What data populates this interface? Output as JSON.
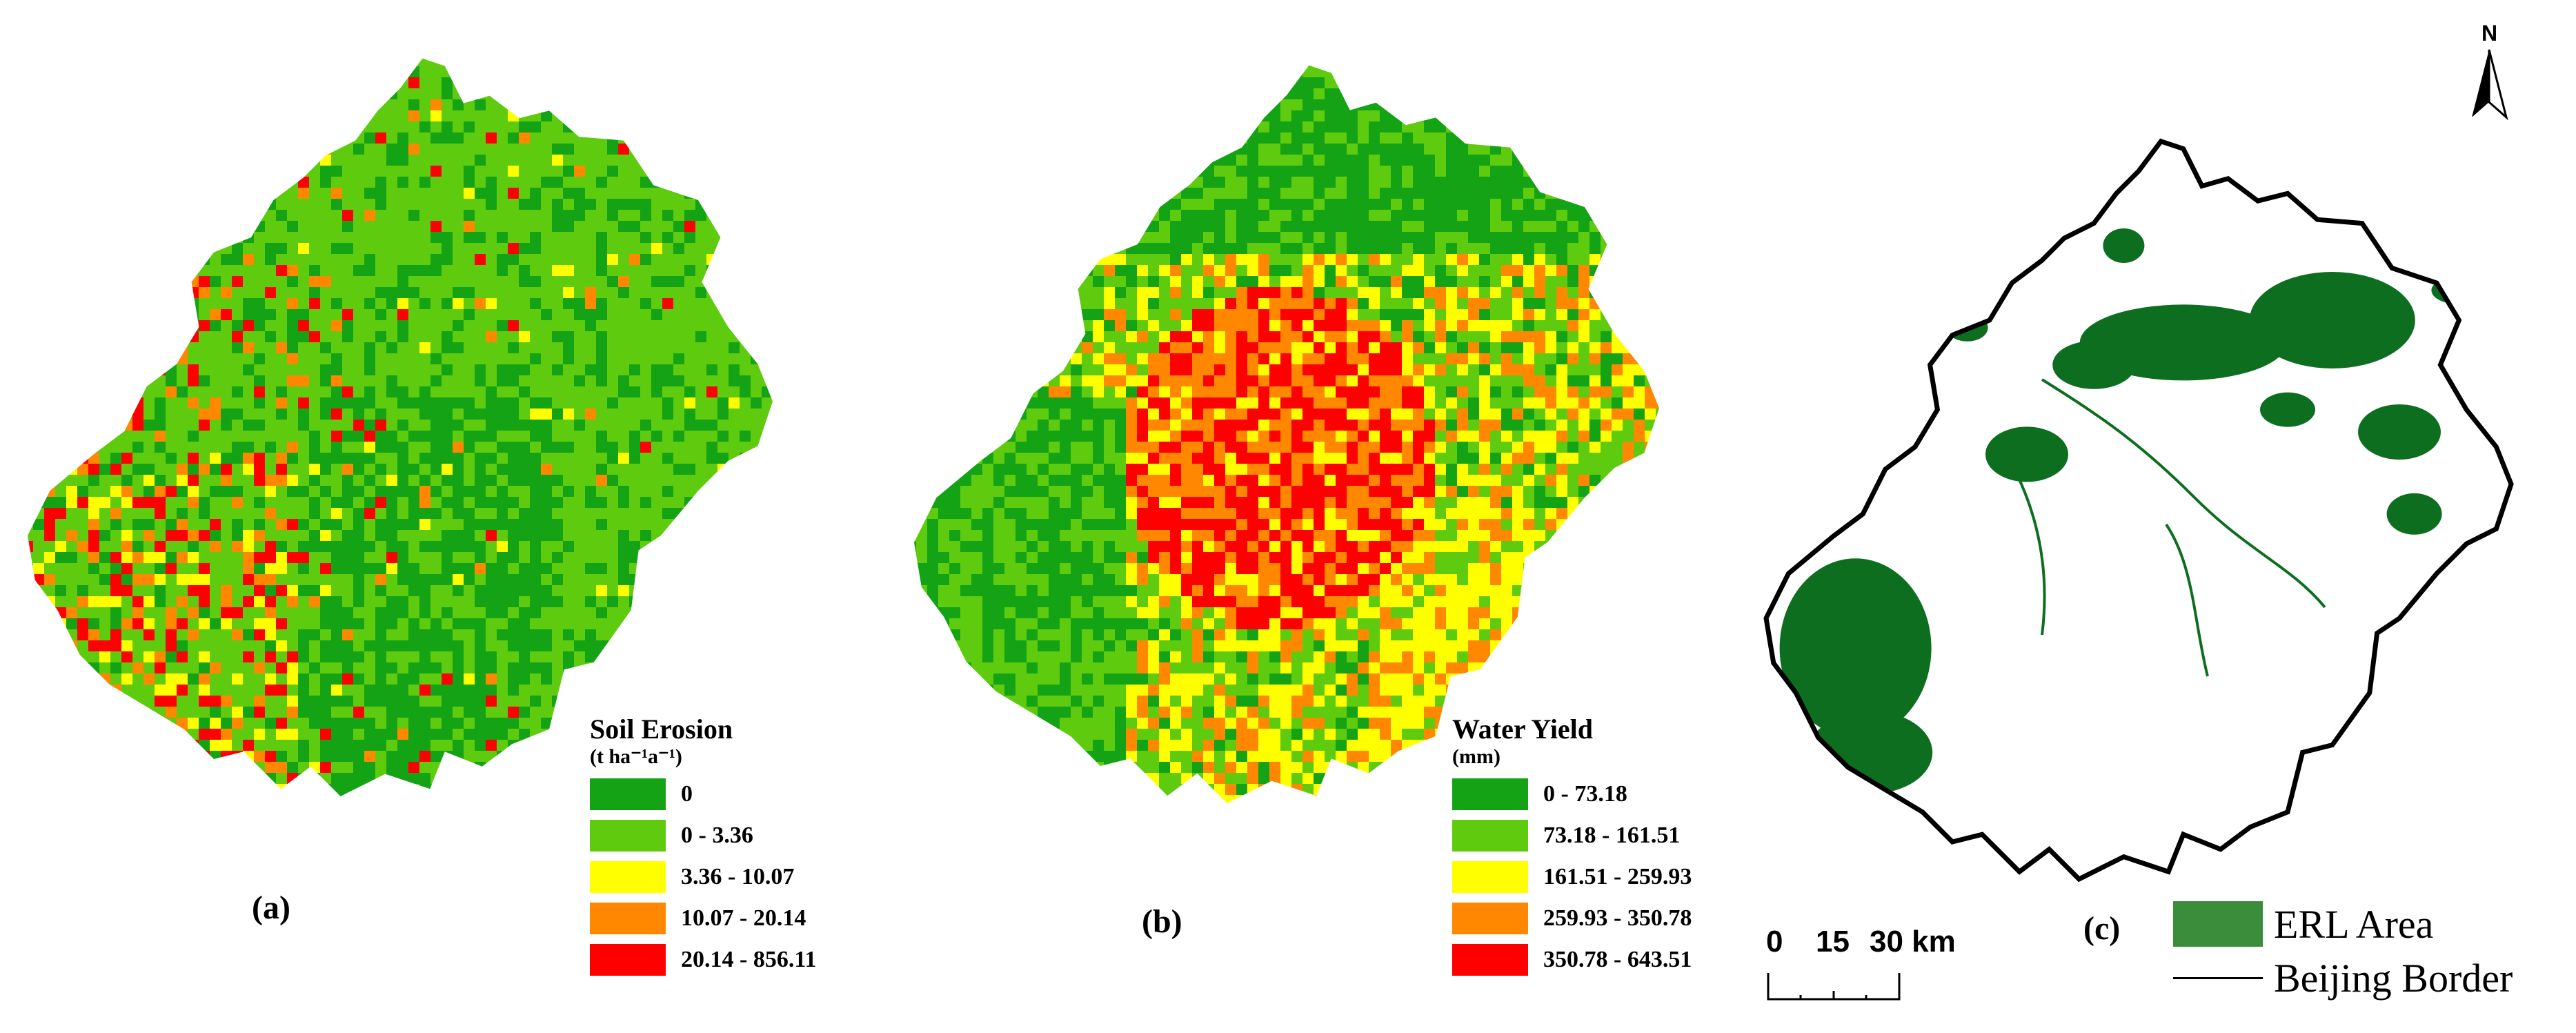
{
  "panels": [
    {
      "label": "(a)",
      "legend": {
        "title": "Soil Erosion",
        "unit": "(t ha⁻¹a⁻¹)",
        "classes": [
          {
            "label": "0",
            "color": "#14a314"
          },
          {
            "label": "0 - 3.36",
            "color": "#5fcb0f"
          },
          {
            "label": "3.36 - 10.07",
            "color": "#ffff00"
          },
          {
            "label": "10.07 - 20.14",
            "color": "#ff8800"
          },
          {
            "label": "20.14 - 856.11",
            "color": "#ff0000"
          }
        ]
      },
      "map_palette": [
        "#14a314",
        "#5fcb0f",
        "#5fcb0f",
        "#5fcb0f",
        "#9bd00c",
        "#ffff00",
        "#ff8800",
        "#ff0000"
      ]
    },
    {
      "label": "(b)",
      "legend": {
        "title": "Water Yield",
        "unit": "(mm)",
        "classes": [
          {
            "label": "0 - 73.18",
            "color": "#14a314"
          },
          {
            "label": "73.18 - 161.51",
            "color": "#5fcb0f"
          },
          {
            "label": "161.51 - 259.93",
            "color": "#ffff00"
          },
          {
            "label": "259.93 - 350.78",
            "color": "#ff8800"
          },
          {
            "label": "350.78 - 643.51",
            "color": "#ff0000"
          }
        ]
      },
      "map_palette": [
        "#14a314",
        "#5fcb0f",
        "#ffff00",
        "#ff8800",
        "#ff0000"
      ]
    },
    {
      "label": "(c)",
      "legend": {
        "erl_label": "ERL Area",
        "border_label": "Beijing Border",
        "erl_color": "#3b8c3b"
      },
      "map_colors": {
        "erl": "#0d6e1f",
        "background": "#ffffff",
        "border": "#000000"
      }
    }
  ],
  "scale_bar": {
    "ticks": [
      "0",
      "15",
      "30 km"
    ]
  },
  "north_arrow": {
    "letter": "N"
  }
}
